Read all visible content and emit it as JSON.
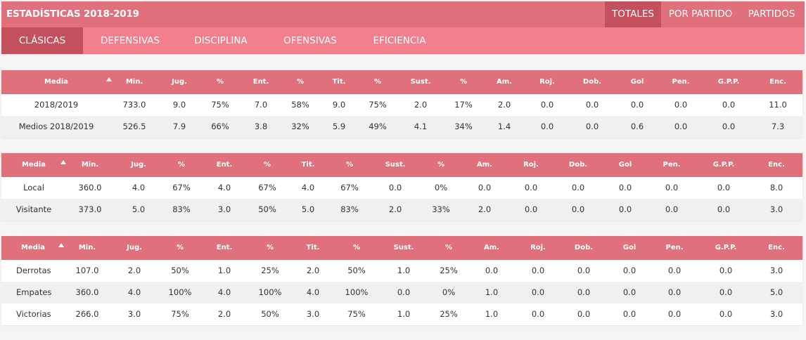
{
  "header": {
    "title": "ESTADÍSTICAS 2018-2019",
    "right_tabs": [
      "TOTALES",
      "POR PARTIDO",
      "PARTIDOS"
    ],
    "active_right_tab": "TOTALES"
  },
  "subtabs": {
    "items": [
      "CLÁSICAS",
      "DEFENSIVAS",
      "DISCIPLINA",
      "OFENSIVAS",
      "EFICIENCIA"
    ],
    "active": "CLÁSICAS"
  },
  "columns": [
    "Media",
    "Min.",
    "Jug.",
    "%",
    "Ent.",
    "%",
    "Tit.",
    "%",
    "Sust.",
    "%",
    "Am.",
    "Roj.",
    "Dob.",
    "Gol",
    "Pen.",
    "G.P.P.",
    "Enc."
  ],
  "tables": [
    {
      "rows": [
        [
          "2018/2019",
          "733.0",
          "9.0",
          "75%",
          "7.0",
          "58%",
          "9.0",
          "75%",
          "2.0",
          "17%",
          "2.0",
          "0.0",
          "0.0",
          "0.0",
          "0.0",
          "0.0",
          "11.0"
        ],
        [
          "Medios 2018/2019",
          "526.5",
          "7.9",
          "66%",
          "3.8",
          "32%",
          "5.9",
          "49%",
          "4.1",
          "34%",
          "1.4",
          "0.0",
          "0.0",
          "0.6",
          "0.0",
          "0.0",
          "7.3"
        ]
      ]
    },
    {
      "rows": [
        [
          "Local",
          "360.0",
          "4.0",
          "67%",
          "4.0",
          "67%",
          "4.0",
          "67%",
          "0.0",
          "0%",
          "0.0",
          "0.0",
          "0.0",
          "0.0",
          "0.0",
          "0.0",
          "8.0"
        ],
        [
          "Visitante",
          "373.0",
          "5.0",
          "83%",
          "3.0",
          "50%",
          "5.0",
          "83%",
          "2.0",
          "33%",
          "2.0",
          "0.0",
          "0.0",
          "0.0",
          "0.0",
          "0.0",
          "3.0"
        ]
      ]
    },
    {
      "rows": [
        [
          "Derrotas",
          "107.0",
          "2.0",
          "50%",
          "1.0",
          "25%",
          "2.0",
          "50%",
          "1.0",
          "25%",
          "0.0",
          "0.0",
          "0.0",
          "0.0",
          "0.0",
          "0.0",
          "3.0"
        ],
        [
          "Empates",
          "360.0",
          "4.0",
          "100%",
          "4.0",
          "100%",
          "4.0",
          "100%",
          "0.0",
          "0%",
          "1.0",
          "0.0",
          "0.0",
          "0.0",
          "0.0",
          "0.0",
          "5.0"
        ],
        [
          "Victorias",
          "266.0",
          "3.0",
          "75%",
          "2.0",
          "50%",
          "3.0",
          "75%",
          "1.0",
          "25%",
          "1.0",
          "0.0",
          "0.0",
          "0.0",
          "0.0",
          "0.0",
          "3.0"
        ]
      ]
    }
  ]
}
